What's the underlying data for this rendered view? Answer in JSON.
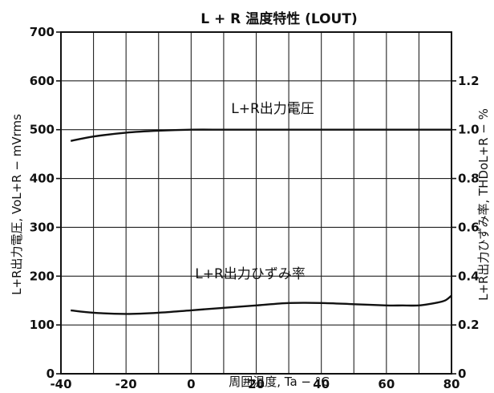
{
  "chart_data": {
    "type": "line",
    "title": "L + R 温度特性 (LOUT)",
    "xlabel": "周囲温度, Ta − °C",
    "ylabel_left": "L+R出力電圧, VoL+R − mVrms",
    "ylabel_right": "L+R出力ひずみ率, THDoL+R − %",
    "x_ticks": [
      "-40",
      "-20",
      "0",
      "20",
      "40",
      "60",
      "80"
    ],
    "y_left_ticks": [
      "0",
      "100",
      "200",
      "300",
      "400",
      "500",
      "600",
      "700"
    ],
    "y_right_ticks": [
      "0",
      "0.2",
      "0.4",
      "0.6",
      "0.8",
      "1.0",
      "1.2"
    ],
    "xlim": [
      -40,
      80
    ],
    "ylim_left": [
      0,
      700
    ],
    "ylim_right": [
      0,
      1.4
    ],
    "grid": true,
    "series": [
      {
        "name": "L+R出力電圧",
        "axis": "left",
        "x": [
          -37,
          -30,
          -20,
          -10,
          0,
          10,
          20,
          30,
          40,
          50,
          60,
          70,
          80
        ],
        "values": [
          477,
          486,
          494,
          498,
          500,
          500,
          500,
          500,
          500,
          500,
          500,
          500,
          500
        ]
      },
      {
        "name": "L+R出力ひずみ率",
        "axis": "right",
        "x": [
          -37,
          -30,
          -20,
          -10,
          0,
          10,
          20,
          30,
          40,
          50,
          60,
          65,
          70,
          75,
          78,
          80
        ],
        "values": [
          0.26,
          0.25,
          0.245,
          0.25,
          0.26,
          0.27,
          0.28,
          0.29,
          0.29,
          0.285,
          0.28,
          0.28,
          0.28,
          0.29,
          0.3,
          0.32
        ]
      }
    ]
  }
}
